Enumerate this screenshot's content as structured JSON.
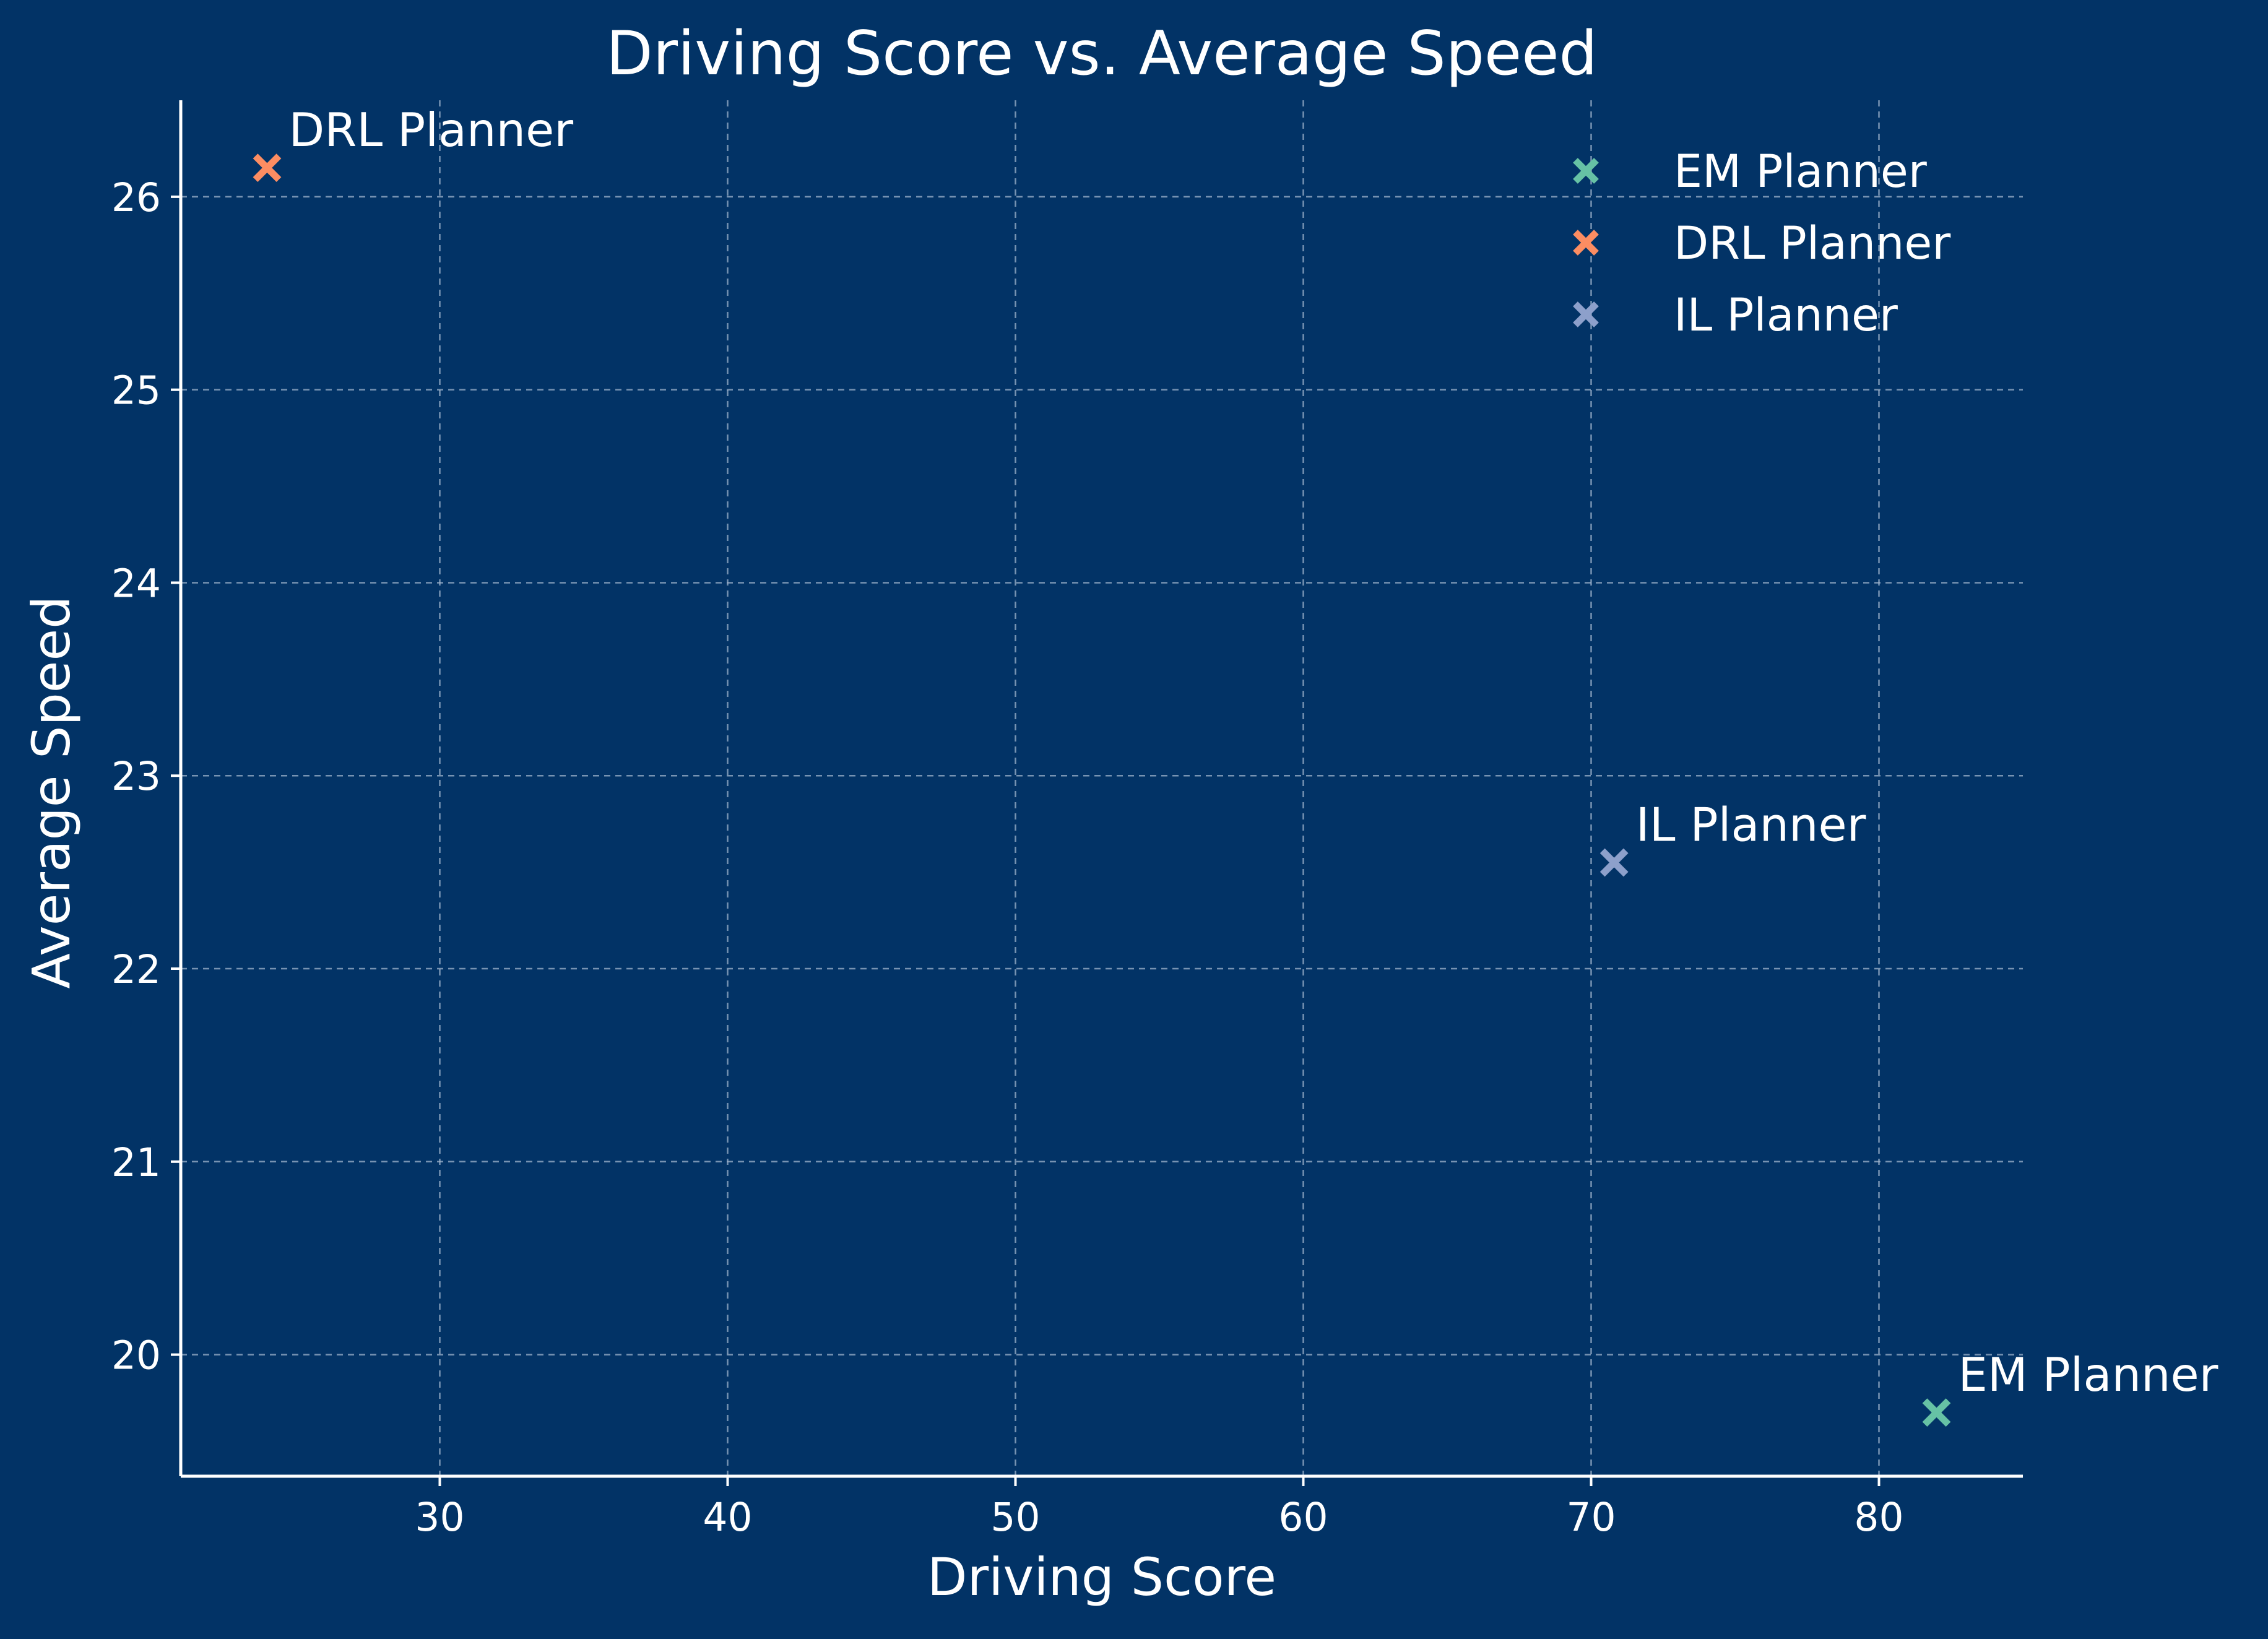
{
  "chart_data": {
    "type": "scatter",
    "title": "Driving Score vs. Average Speed",
    "xlabel": "Driving Score",
    "ylabel": "Average Speed",
    "xlim": [
      21,
      85
    ],
    "ylim": [
      19.37,
      26.5
    ],
    "xticks": [
      30,
      40,
      50,
      60,
      70,
      80
    ],
    "yticks": [
      20,
      21,
      22,
      23,
      24,
      25,
      26
    ],
    "grid": true,
    "legend_position": "top-right",
    "marker": "x",
    "series": [
      {
        "name": "EM Planner",
        "x": 82,
        "y": 19.7,
        "label": "EM Planner",
        "color": "#66c2a5"
      },
      {
        "name": "DRL Planner",
        "x": 24,
        "y": 26.15,
        "label": "DRL Planner",
        "color": "#fc8d62"
      },
      {
        "name": "IL Planner",
        "x": 70.8,
        "y": 22.55,
        "label": "IL Planner",
        "color": "#8da0cb"
      }
    ]
  }
}
